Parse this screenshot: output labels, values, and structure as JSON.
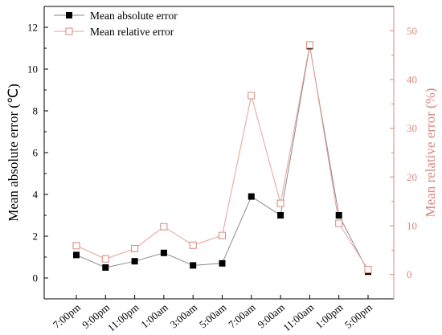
{
  "chart_data": {
    "type": "line",
    "categories": [
      "7:00pm",
      "9:00pm",
      "11:00pm",
      "1:00am",
      "3:00am",
      "5:00am",
      "7:00am",
      "9:00am",
      "11:00am",
      "1:00pm",
      "5:00pm"
    ],
    "series": [
      {
        "name": "Mean absolute error",
        "axis": "left",
        "marker": "filled-square",
        "color": "#000000",
        "line_color": "#8a8a8a",
        "values": [
          1.1,
          0.5,
          0.8,
          1.2,
          0.6,
          0.7,
          3.9,
          3.0,
          11.1,
          3.0,
          0.3
        ]
      },
      {
        "name": "Mean relative error",
        "axis": "right",
        "marker": "open-square",
        "color": "#d9877d",
        "line_color": "#e8a096",
        "values": [
          5.9,
          3.2,
          5.3,
          9.8,
          6.0,
          8.0,
          36.7,
          14.6,
          47.1,
          10.5,
          1.0
        ]
      }
    ],
    "ylabel": "Mean absolute error (℃)",
    "y2label": "Mean relative error (%)",
    "ylim": [
      -1,
      13
    ],
    "y2lim": [
      -5,
      55
    ],
    "yticks": [
      0,
      2,
      4,
      6,
      8,
      10,
      12
    ],
    "y2ticks": [
      0,
      10,
      20,
      30,
      40,
      50
    ],
    "right_axis_color": "#d9877d",
    "legend_position": "top-left",
    "grid": false
  }
}
